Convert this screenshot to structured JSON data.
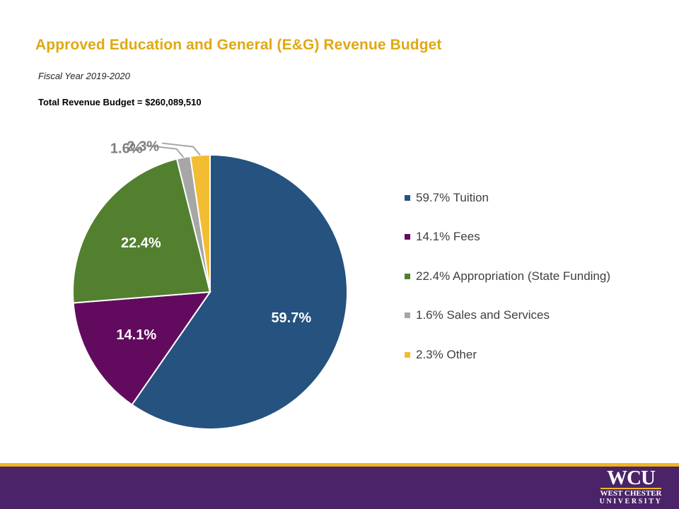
{
  "chart_data": {
    "type": "pie",
    "title": "Approved Education and General (E&G) Revenue Budget",
    "subtitle": "Fiscal Year 2019-2020",
    "total_label": "Total Revenue Budget = $260,089,510",
    "slices": [
      {
        "label": "Tuition",
        "value": 59.7,
        "data_label": "59.7%",
        "legend": "59.7% Tuition",
        "color": "#25527f"
      },
      {
        "label": "Fees",
        "value": 14.1,
        "data_label": "14.1%",
        "legend": "14.1% Fees",
        "color": "#620b5e"
      },
      {
        "label": "Appropriation (State Funding)",
        "value": 22.4,
        "data_label": "22.4%",
        "legend": "22.4% Appropriation (State Funding)",
        "color": "#52802f"
      },
      {
        "label": "Sales and Services",
        "value": 1.6,
        "data_label": "1.6%",
        "legend": "1.6% Sales and Services",
        "color": "#a6a6a6"
      },
      {
        "label": "Other",
        "value": 2.3,
        "data_label": "2.3%",
        "legend": "2.3% Other",
        "color": "#f2bd33"
      }
    ],
    "legend_position": "right"
  },
  "logo": {
    "text_main": "WCU",
    "text_sub1": "WEST CHESTER",
    "text_sub2": "UNIVERSITY"
  },
  "colors": {
    "title": "#e0a812",
    "footer_band": "#4a2368",
    "footer_accent": "#f0b61f"
  }
}
